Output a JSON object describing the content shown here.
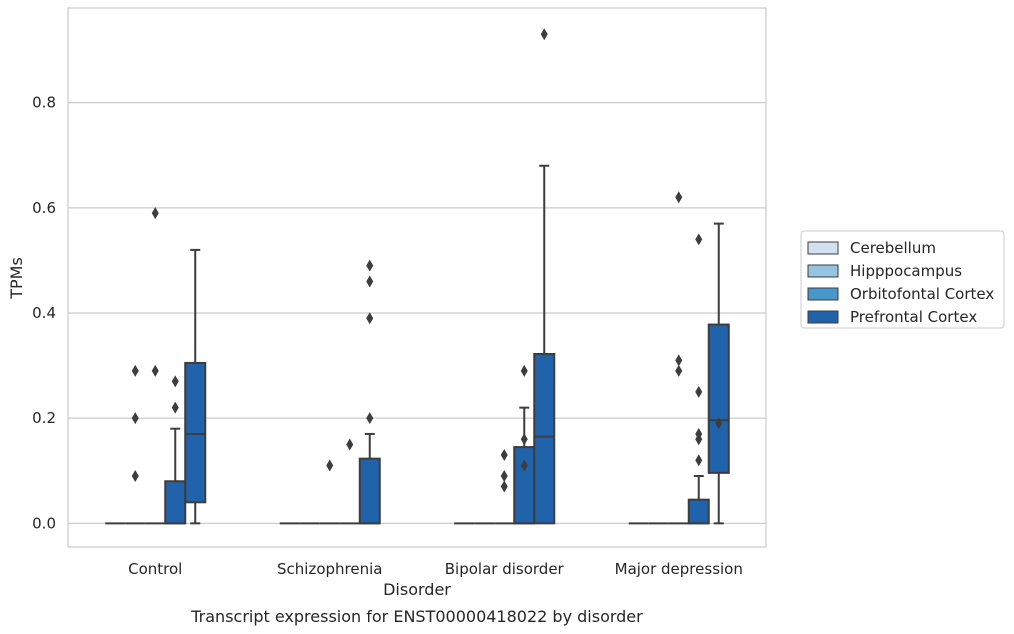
{
  "chart_data": {
    "type": "box",
    "title": "",
    "caption": "Transcript expression for ENST00000418022 by disorder",
    "xlabel": "Disorder",
    "ylabel": "TPMs",
    "ylim": [
      -0.045,
      0.98
    ],
    "yticks": [
      0.0,
      0.2,
      0.4,
      0.6,
      0.8
    ],
    "ytick_labels": [
      "0.0",
      "0.2",
      "0.4",
      "0.6",
      "0.8"
    ],
    "grid": "horizontal",
    "legend_position": "right",
    "categories": [
      "Control",
      "Schizophrenia",
      "Bipolar disorder",
      "Major depression"
    ],
    "series": [
      {
        "name": "Cerebellum",
        "color": "#d0e1f2",
        "boxes": [
          {
            "min": 0,
            "q1": 0,
            "median": 0,
            "q3": 0,
            "max": 0,
            "outliers": []
          },
          {
            "min": 0,
            "q1": 0,
            "median": 0,
            "q3": 0,
            "max": 0,
            "outliers": []
          },
          {
            "min": 0,
            "q1": 0,
            "median": 0,
            "q3": 0,
            "max": 0,
            "outliers": []
          },
          {
            "min": 0,
            "q1": 0,
            "median": 0,
            "q3": 0,
            "max": 0,
            "outliers": []
          }
        ]
      },
      {
        "name": "Hipppocampus",
        "color": "#94c4df",
        "boxes": [
          {
            "min": 0,
            "q1": 0,
            "median": 0,
            "q3": 0,
            "max": 0,
            "outliers": [
              0.09,
              0.2,
              0.29
            ]
          },
          {
            "min": 0,
            "q1": 0,
            "median": 0,
            "q3": 0,
            "max": 0,
            "outliers": []
          },
          {
            "min": 0,
            "q1": 0,
            "median": 0,
            "q3": 0,
            "max": 0,
            "outliers": []
          },
          {
            "min": 0,
            "q1": 0,
            "median": 0,
            "q3": 0,
            "max": 0,
            "outliers": []
          }
        ]
      },
      {
        "name": "Orbitofontal Cortex",
        "color": "#4a98c9",
        "boxes": [
          {
            "min": 0,
            "q1": 0,
            "median": 0,
            "q3": 0,
            "max": 0,
            "outliers": [
              0.29,
              0.59
            ]
          },
          {
            "min": 0,
            "q1": 0,
            "median": 0,
            "q3": 0,
            "max": 0,
            "outliers": [
              0.11
            ]
          },
          {
            "min": 0,
            "q1": 0,
            "median": 0,
            "q3": 0,
            "max": 0,
            "outliers": [
              0.07,
              0.09,
              0.13
            ]
          },
          {
            "min": 0,
            "q1": 0,
            "median": 0,
            "q3": 0,
            "max": 0,
            "outliers": [
              0.29,
              0.31,
              0.62
            ]
          }
        ]
      },
      {
        "name": "Prefrontal Cortex",
        "color": "#2163aa",
        "boxes": [
          {
            "min": 0,
            "q1": 0,
            "median": 0,
            "q3": 0.08,
            "max": 0.18,
            "outliers": [
              0.22,
              0.27
            ]
          },
          {
            "min": 0,
            "q1": 0,
            "median": 0,
            "q3": 0,
            "max": 0,
            "outliers": [
              0.15
            ]
          },
          {
            "min": 0,
            "q1": 0,
            "median": 0,
            "q3": 0.145,
            "max": 0.22,
            "outliers": [
              0.11,
              0.16,
              0.29
            ]
          },
          {
            "min": 0,
            "q1": 0,
            "median": 0,
            "q3": 0.045,
            "max": 0.09,
            "outliers": [
              0.12,
              0.16,
              0.17,
              0.25,
              0.54
            ]
          }
        ]
      },
      {
        "name": "",
        "color": "#2163aa",
        "boxes": [
          {
            "min": 0,
            "q1": 0.04,
            "median": 0.17,
            "q3": 0.305,
            "max": 0.52,
            "outliers": []
          },
          {
            "min": 0,
            "q1": 0,
            "median": 0,
            "q3": 0.123,
            "max": 0.17,
            "outliers": [
              0.2,
              0.39,
              0.46,
              0.49
            ]
          },
          {
            "min": 0,
            "q1": 0,
            "median": 0.165,
            "q3": 0.322,
            "max": 0.68,
            "outliers": [
              0.93
            ]
          },
          {
            "min": 0,
            "q1": 0.096,
            "median": 0.196,
            "q3": 0.378,
            "max": 0.57,
            "outliers": [
              0.19
            ]
          }
        ]
      }
    ]
  }
}
